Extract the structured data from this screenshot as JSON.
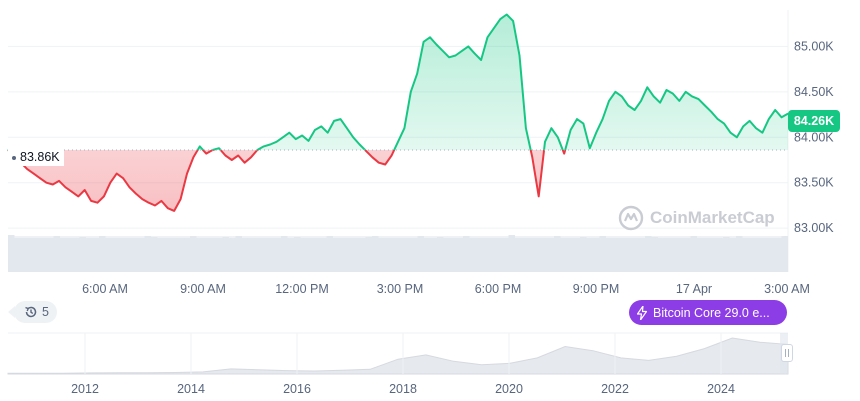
{
  "chart_data": {
    "type": "line",
    "baseline": 83.86,
    "current_price_label": "84.26K",
    "baseline_label": "83.86K",
    "y_axis": {
      "unit": "K",
      "ticks": [
        "85.00K",
        "84.50K",
        "84.00K",
        "83.50K",
        "83.00K"
      ],
      "tick_values": [
        85.0,
        84.5,
        84.0,
        83.5,
        83.0
      ],
      "range": [
        82.65,
        85.4
      ]
    },
    "x_axis": {
      "ticks": [
        "6:00 AM",
        "9:00 AM",
        "12:00 PM",
        "3:00 PM",
        "6:00 PM",
        "9:00 PM",
        "17 Apr",
        "3:00 AM"
      ]
    },
    "series": [
      {
        "values": [
          83.86,
          83.8,
          83.72,
          83.65,
          83.6,
          83.55,
          83.5,
          83.48,
          83.52,
          83.45,
          83.4,
          83.35,
          83.42,
          83.3,
          83.28,
          83.35,
          83.5,
          83.6,
          83.55,
          83.45,
          83.38,
          83.32,
          83.28,
          83.25,
          83.3,
          83.22,
          83.19,
          83.32,
          83.6,
          83.78,
          83.9,
          83.82,
          83.86,
          83.88,
          83.8,
          83.75,
          83.8,
          83.72,
          83.78,
          83.86,
          83.9,
          83.92,
          83.95,
          84.0,
          84.05,
          83.98,
          84.02,
          83.96,
          84.08,
          84.12,
          84.05,
          84.18,
          84.2,
          84.1,
          84.0,
          83.92,
          83.85,
          83.78,
          83.72,
          83.7,
          83.8,
          83.95,
          84.1,
          84.5,
          84.7,
          85.05,
          85.1,
          85.02,
          84.95,
          84.88,
          84.9,
          84.95,
          85.0,
          84.92,
          84.85,
          85.1,
          85.2,
          85.3,
          85.35,
          85.28,
          84.9,
          84.1,
          83.78,
          83.35,
          83.95,
          84.1,
          84.0,
          83.82,
          84.08,
          84.2,
          84.15,
          83.88,
          84.05,
          84.2,
          84.4,
          84.5,
          84.45,
          84.35,
          84.3,
          84.4,
          84.55,
          84.45,
          84.38,
          84.52,
          84.48,
          84.4,
          84.5,
          84.45,
          84.42,
          84.35,
          84.28,
          84.2,
          84.15,
          84.05,
          84.0,
          84.12,
          84.18,
          84.1,
          84.05,
          84.2,
          84.3,
          84.22,
          84.26
        ]
      }
    ],
    "volume_bars": true,
    "grid": "horizontal",
    "up_color": "#16c784",
    "down_color": "#ea3943"
  },
  "overview": {
    "ticks": [
      "2012",
      "2014",
      "2016",
      "2018",
      "2020",
      "2022",
      "2024"
    ],
    "values": [
      0.2,
      0.2,
      0.2,
      0.25,
      0.3,
      0.3,
      0.35,
      0.5,
      1.2,
      1.0,
      0.8,
      0.7,
      0.9,
      1.1,
      3.5,
      4.5,
      3.0,
      2.2,
      2.5,
      3.8,
      6.5,
      5.5,
      3.8,
      3.2,
      4.2,
      6.0,
      8.5,
      7.5,
      7.0
    ]
  },
  "watermark": {
    "text": "CoinMarketCap"
  },
  "history_chip": {
    "count": "5"
  },
  "news_chip": {
    "text": "Bitcoin Core 29.0 e..."
  }
}
